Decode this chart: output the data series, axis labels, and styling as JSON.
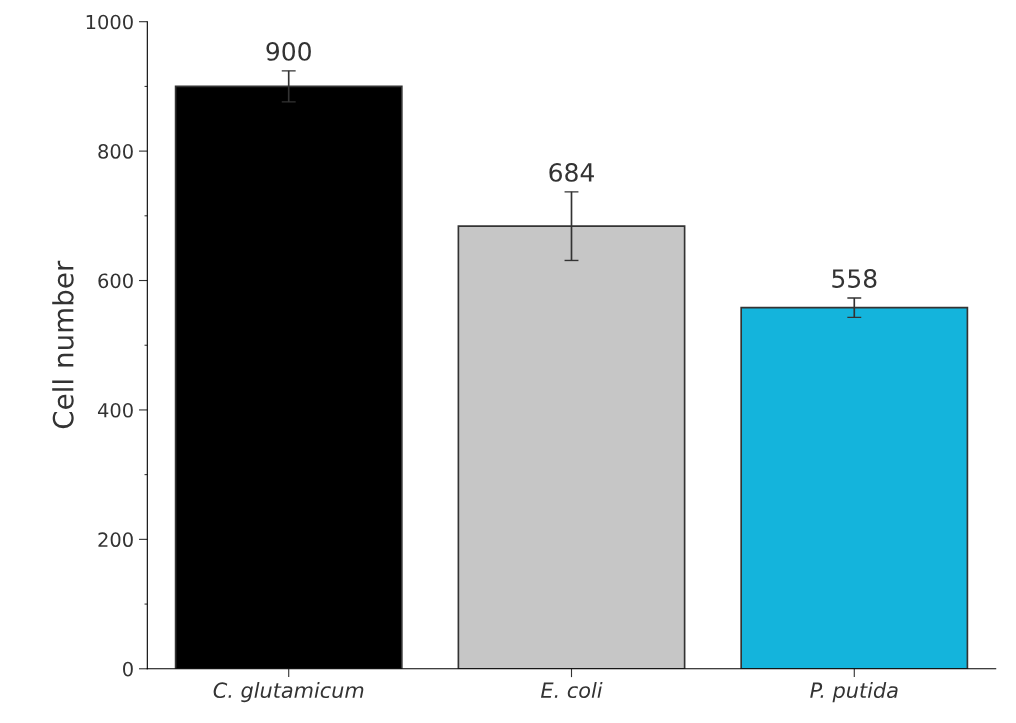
{
  "chart_data": {
    "type": "bar",
    "ylabel": "Cell number",
    "categories": [
      "C. glutamicum",
      "E. coli",
      "P. putida"
    ],
    "values": [
      900,
      684,
      558
    ],
    "errors": [
      24,
      53,
      15
    ],
    "colors": [
      "#000000",
      "#c6c6c6",
      "#14b4dc"
    ],
    "ylim": [
      0,
      1000
    ],
    "yticks": [
      0,
      200,
      400,
      600,
      800,
      1000
    ],
    "grid": false,
    "data_labels": true
  }
}
